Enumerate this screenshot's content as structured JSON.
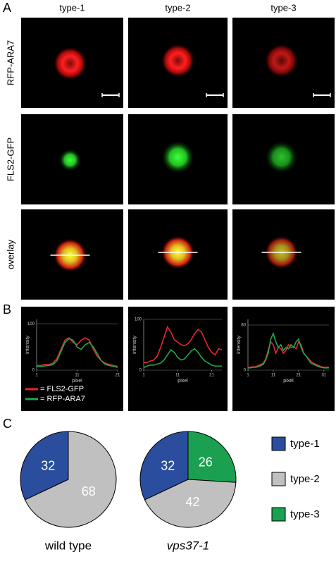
{
  "panels": {
    "A": {
      "label": "A",
      "columns": [
        "type-1",
        "type-2",
        "type-3"
      ],
      "rows": [
        "RFP-ARA7",
        "FLS2-GFP",
        "overlay"
      ]
    },
    "B": {
      "label": "B"
    },
    "C": {
      "label": "C"
    }
  },
  "chart_data": [
    {
      "type": "line",
      "ylabel": "intensity",
      "xlabel": "pixel",
      "xlim": [
        1,
        21
      ],
      "ylim": [
        0,
        110
      ],
      "xticks": [
        1,
        11,
        21
      ],
      "yticks": [
        0,
        100
      ],
      "grid": true,
      "x": [
        1,
        2,
        3,
        4,
        5,
        6,
        7,
        8,
        9,
        10,
        11,
        12,
        13,
        14,
        15,
        16,
        17,
        18,
        19,
        20,
        21
      ],
      "series": [
        {
          "name": "= FLS2-GFP",
          "color": "#e8262a",
          "values": [
            10,
            10,
            12,
            12,
            15,
            25,
            45,
            65,
            70,
            60,
            55,
            65,
            70,
            65,
            45,
            30,
            20,
            15,
            12,
            10,
            8
          ]
        },
        {
          "name": "= RFP-ARA7",
          "color": "#1fa84a",
          "values": [
            8,
            8,
            9,
            10,
            12,
            20,
            40,
            60,
            68,
            65,
            50,
            45,
            55,
            60,
            50,
            35,
            20,
            12,
            10,
            8,
            6
          ]
        }
      ]
    },
    {
      "type": "line",
      "ylabel": "intensity",
      "xlabel": "pixel",
      "xlim": [
        1,
        24
      ],
      "ylim": [
        0,
        100
      ],
      "xticks": [
        1,
        11,
        21
      ],
      "yticks": [
        0,
        100
      ],
      "grid": true,
      "x": [
        1,
        2,
        3,
        4,
        5,
        6,
        7,
        8,
        9,
        10,
        11,
        12,
        13,
        14,
        15,
        16,
        17,
        18,
        19,
        20,
        21,
        22,
        23,
        24
      ],
      "series": [
        {
          "color": "#e8262a",
          "values": [
            15,
            15,
            18,
            20,
            28,
            45,
            65,
            85,
            75,
            60,
            55,
            50,
            48,
            52,
            60,
            72,
            80,
            75,
            60,
            45,
            35,
            30,
            42,
            40
          ]
        },
        {
          "color": "#1fa84a",
          "values": [
            5,
            8,
            10,
            10,
            12,
            14,
            20,
            30,
            40,
            35,
            25,
            20,
            22,
            30,
            38,
            42,
            35,
            25,
            18,
            14,
            10,
            8,
            8,
            8
          ]
        }
      ]
    },
    {
      "type": "line",
      "ylabel": "intensity",
      "xlabel": "pixel",
      "xlim": [
        1,
        33
      ],
      "ylim": [
        0,
        90
      ],
      "xticks": [
        1,
        11,
        21,
        31
      ],
      "yticks": [
        0,
        80
      ],
      "grid": true,
      "x": [
        1,
        2,
        3,
        4,
        5,
        6,
        7,
        8,
        9,
        10,
        11,
        12,
        13,
        14,
        15,
        16,
        17,
        18,
        19,
        20,
        21,
        22,
        23,
        24,
        25,
        26,
        27,
        28,
        29,
        30,
        31,
        32,
        33
      ],
      "series": [
        {
          "color": "#e8262a",
          "values": [
            5,
            5,
            6,
            6,
            8,
            10,
            12,
            20,
            35,
            50,
            45,
            30,
            40,
            38,
            30,
            35,
            45,
            40,
            42,
            38,
            50,
            45,
            30,
            25,
            20,
            15,
            12,
            10,
            8,
            6,
            5,
            5,
            5
          ]
        },
        {
          "color": "#1fa84a",
          "values": [
            4,
            4,
            5,
            5,
            6,
            8,
            10,
            18,
            30,
            55,
            65,
            50,
            40,
            45,
            35,
            40,
            38,
            45,
            40,
            50,
            55,
            40,
            30,
            25,
            18,
            12,
            10,
            8,
            6,
            5,
            4,
            4,
            4
          ]
        }
      ]
    },
    {
      "type": "pie",
      "xlabel": "wild type",
      "values": [
        32,
        68
      ],
      "colors": [
        "#2a4d9e",
        "#c0c0c0"
      ]
    },
    {
      "type": "pie",
      "xlabel": "vps37-1",
      "categories": [
        "type-1",
        "type-2",
        "type-3"
      ],
      "values": [
        32,
        42,
        26
      ],
      "colors": [
        "#2a4d9e",
        "#c0c0c0",
        "#1aa050"
      ]
    }
  ]
}
